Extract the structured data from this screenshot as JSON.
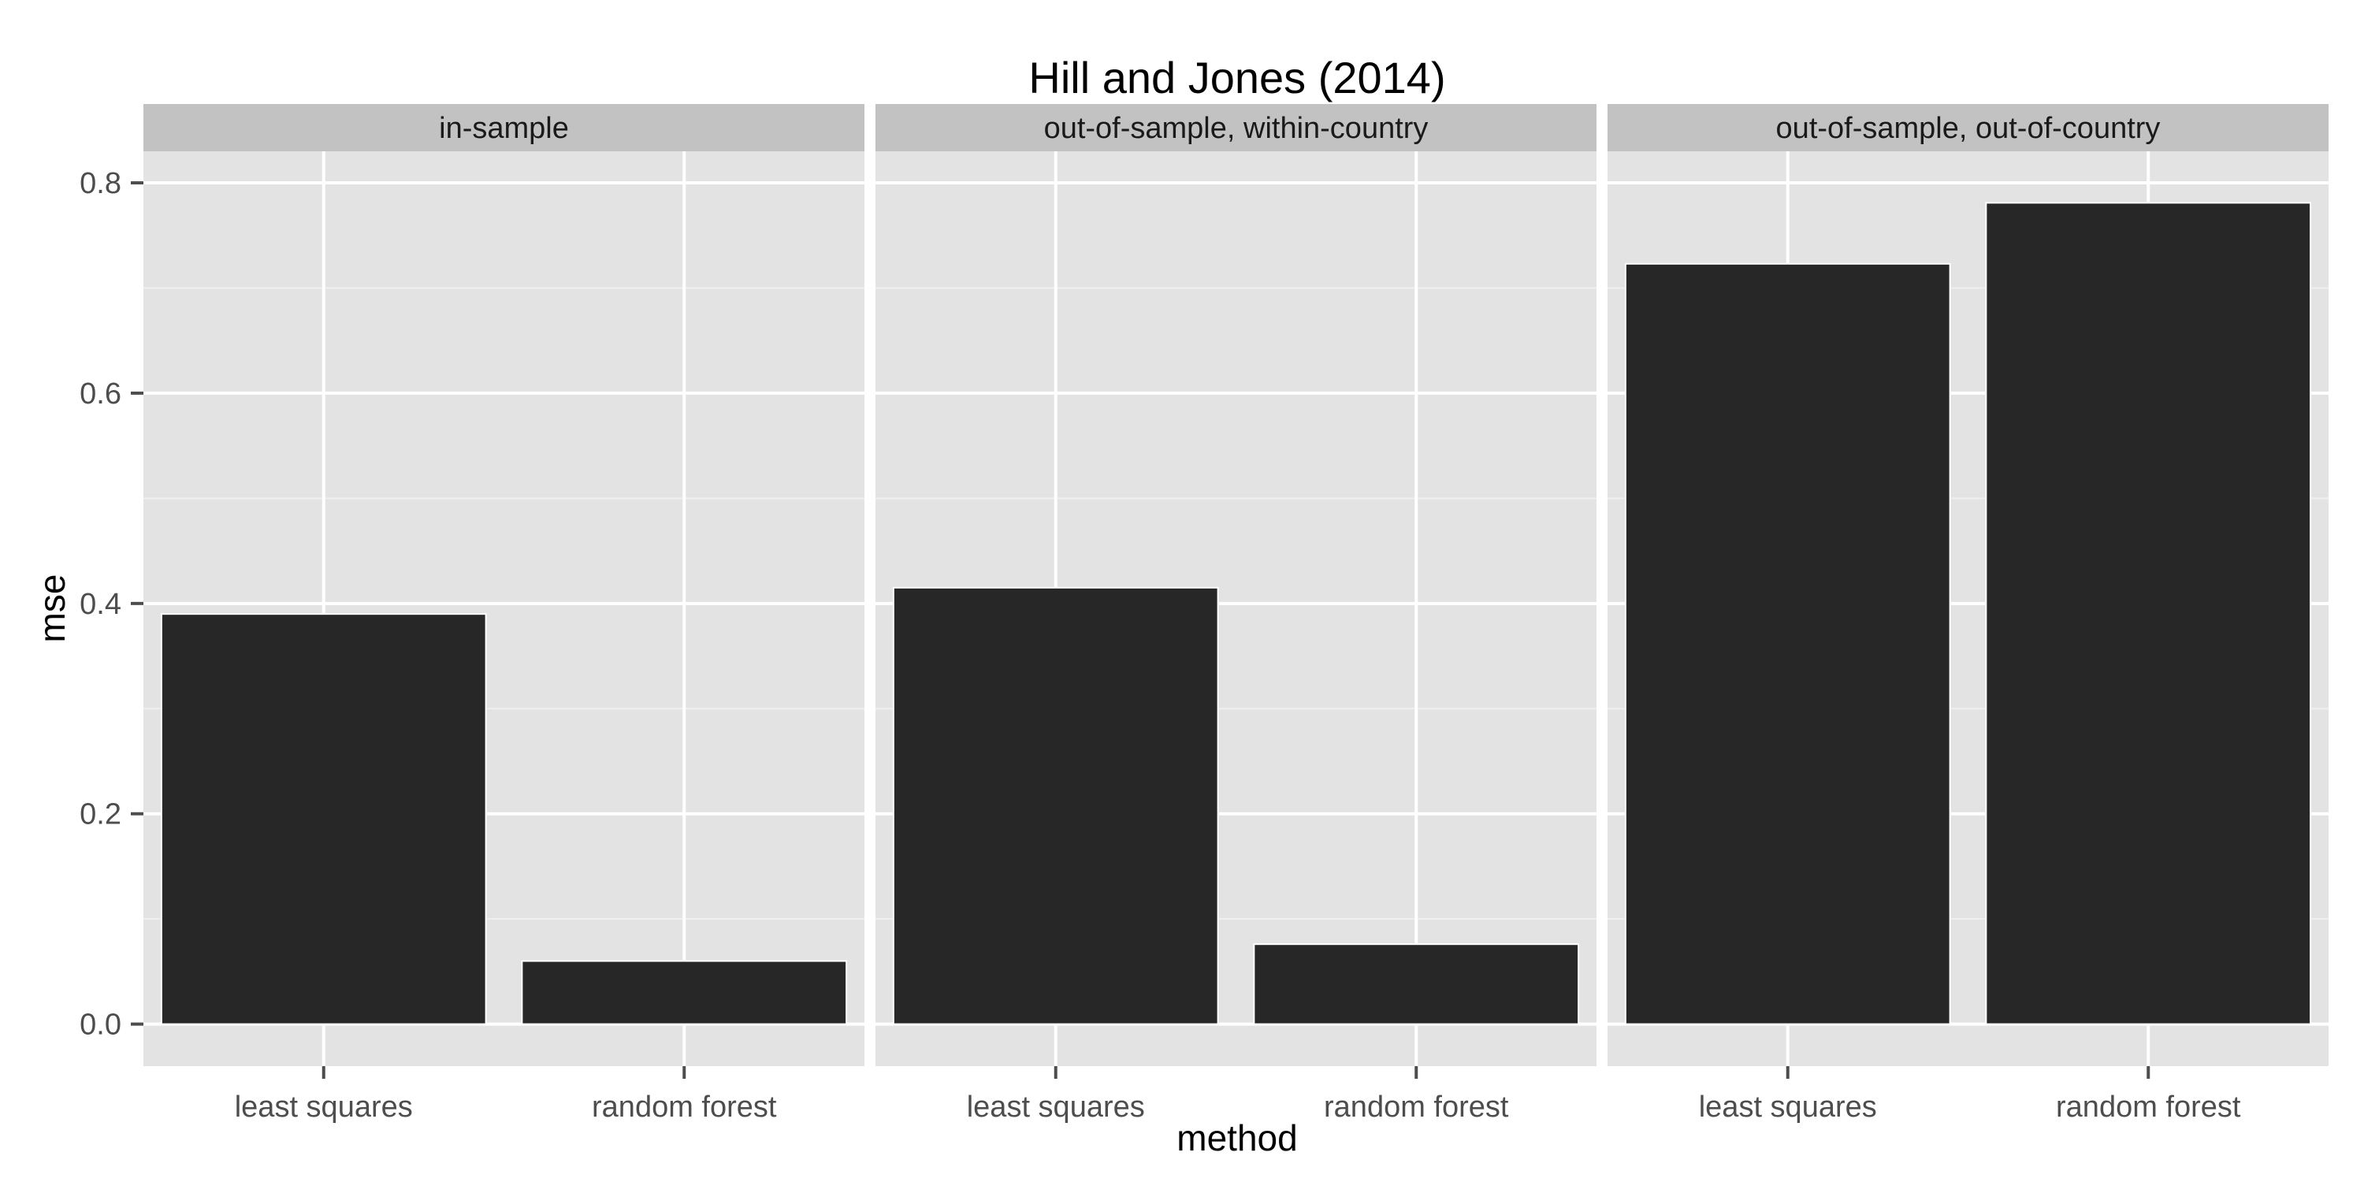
{
  "chart_data": {
    "type": "bar",
    "title": "Hill and Jones (2014)",
    "xlabel": "method",
    "ylabel": "mse",
    "ylim": [
      -0.04,
      0.83
    ],
    "yticks": [
      "0.0",
      "0.2",
      "0.4",
      "0.6",
      "0.8"
    ],
    "ytick_values": [
      0.0,
      0.2,
      0.4,
      0.6,
      0.8
    ],
    "categories": [
      "least squares",
      "random forest"
    ],
    "facets": [
      {
        "name": "in-sample",
        "values": [
          0.39,
          0.06
        ]
      },
      {
        "name": "out-of-sample, within-country",
        "values": [
          0.415,
          0.076
        ]
      },
      {
        "name": "out-of-sample, out-of-country",
        "values": [
          0.723,
          0.781
        ]
      }
    ],
    "grid": true,
    "colors": {
      "panel": "#E3E3E3",
      "strip": "#C2C2C2",
      "grid_major": "#FFFFFF",
      "grid_minor": "#EFEFEF",
      "bar": "#272727",
      "tick": "#4D4D4D"
    }
  }
}
